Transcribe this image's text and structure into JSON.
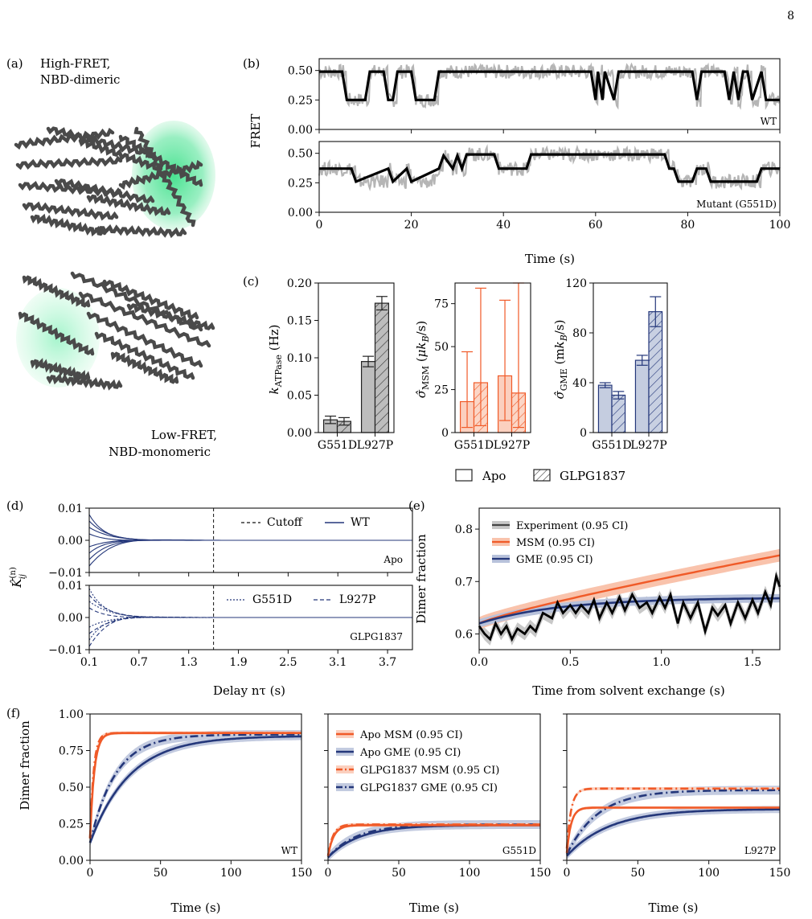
{
  "page_number": "8",
  "panel_labels": {
    "a": "(a)",
    "b": "(b)",
    "c": "(c)",
    "d": "(d)",
    "e": "(e)",
    "f": "(f)"
  },
  "panel_a": {
    "top_label_line1": "High-FRET,",
    "top_label_line2": "NBD-dimeric",
    "bottom_label_line1": "Low-FRET,",
    "bottom_label_line2": "NBD-monomeric",
    "highlight_color": "#3ee08a",
    "protein_color": "#4a4a4a"
  },
  "colors": {
    "msm": "#f05a28",
    "gme": "#24377a",
    "gray": "#b5b5b5",
    "gme_fill": "#c5cde0",
    "msm_fill": "#fbd0bf"
  },
  "chart_data": [
    {
      "id": "b",
      "type": "line",
      "ylabel": "FRET",
      "xlabel": "Time (s)",
      "xlim": [
        0,
        100
      ],
      "xticks": [
        "0",
        "20",
        "40",
        "60",
        "80",
        "100"
      ],
      "yticks": [
        "0.00",
        "0.25",
        "0.50"
      ],
      "subplots": [
        {
          "tag": "WT",
          "steps_x": [
            0,
            5,
            6,
            10,
            11,
            14,
            15,
            16,
            17,
            20,
            21,
            25,
            26,
            59,
            60,
            60.5,
            61.5,
            62,
            64,
            65,
            81,
            82,
            83,
            88,
            89,
            90,
            91,
            92,
            93,
            94,
            96,
            97,
            100
          ],
          "steps_y": [
            0.49,
            0.49,
            0.25,
            0.25,
            0.49,
            0.49,
            0.25,
            0.25,
            0.49,
            0.49,
            0.25,
            0.25,
            0.49,
            0.49,
            0.25,
            0.49,
            0.25,
            0.49,
            0.25,
            0.49,
            0.49,
            0.25,
            0.49,
            0.49,
            0.25,
            0.49,
            0.25,
            0.49,
            0.49,
            0.25,
            0.49,
            0.25,
            0.25
          ]
        },
        {
          "tag": "Mutant (G551D)",
          "steps_x": [
            0,
            7,
            8,
            15,
            16,
            19,
            20,
            26,
            27,
            29,
            30,
            31,
            32,
            38,
            39,
            45,
            46,
            75,
            76,
            77,
            78,
            81,
            82,
            84,
            85,
            95,
            96,
            99,
            100
          ],
          "steps_y": [
            0.37,
            0.37,
            0.26,
            0.37,
            0.26,
            0.37,
            0.26,
            0.37,
            0.48,
            0.37,
            0.48,
            0.37,
            0.49,
            0.49,
            0.37,
            0.37,
            0.49,
            0.49,
            0.37,
            0.37,
            0.26,
            0.26,
            0.37,
            0.37,
            0.26,
            0.26,
            0.37,
            0.37,
            0.37
          ]
        }
      ]
    },
    {
      "id": "c1",
      "type": "bar",
      "ylabel": "k_ATPase (Hz)",
      "categories": [
        "G551D",
        "L927P"
      ],
      "ylim": [
        0,
        0.2
      ],
      "yticks": [
        "0.00",
        "0.05",
        "0.10",
        "0.15",
        "0.20"
      ],
      "series": [
        {
          "name": "Apo",
          "values": [
            0.017,
            0.095
          ],
          "err": [
            0.005,
            0.007
          ]
        },
        {
          "name": "GLPG1837",
          "values": [
            0.015,
            0.173
          ],
          "err": [
            0.005,
            0.009
          ]
        }
      ]
    },
    {
      "id": "c2",
      "type": "bar",
      "ylabel": "σ̂_MSM (μk_B/s)",
      "categories": [
        "G551D",
        "L927P"
      ],
      "ylim": [
        0,
        87
      ],
      "yticks": [
        "0",
        "25",
        "50",
        "75"
      ],
      "series": [
        {
          "name": "Apo",
          "values": [
            18,
            33
          ],
          "err_low": [
            3,
            7
          ],
          "err_high": [
            47,
            77
          ]
        },
        {
          "name": "GLPG1837",
          "values": [
            29,
            23
          ],
          "err_low": [
            4,
            3
          ],
          "err_high": [
            84,
            87
          ]
        }
      ]
    },
    {
      "id": "c3",
      "type": "bar",
      "ylabel": "σ̂_GME (mk_B/s)",
      "categories": [
        "G551D",
        "L927P"
      ],
      "ylim": [
        0,
        120
      ],
      "yticks": [
        "0",
        "40",
        "80",
        "120"
      ],
      "series": [
        {
          "name": "Apo",
          "values": [
            38,
            58
          ],
          "err": [
            2,
            4
          ]
        },
        {
          "name": "GLPG1837",
          "values": [
            30,
            97
          ],
          "err": [
            3,
            12
          ]
        }
      ]
    },
    {
      "id": "d",
      "type": "line",
      "ylabel": "K̂_ij^(n)",
      "xlabel": "Delay nτ (s)",
      "xlim": [
        0.1,
        4.0
      ],
      "xticks": [
        "0.1",
        "0.7",
        "1.3",
        "1.9",
        "2.5",
        "3.1",
        "3.7"
      ],
      "yticks": [
        "0.01",
        "0.00",
        "−0.01"
      ],
      "cutoff": 1.6,
      "subplots": [
        {
          "tag": "Apo",
          "legend": [
            "Cutoff",
            "WT"
          ],
          "amplitudes": [
            0.008,
            0.006,
            0.004,
            -0.004,
            -0.006,
            -0.008,
            0.002,
            -0.002
          ]
        },
        {
          "tag": "GLPG1837",
          "legend": [
            "G551D",
            "L927P"
          ],
          "amplitudes": [
            0.009,
            0.007,
            0.005,
            0.003,
            -0.003,
            -0.005,
            -0.007,
            -0.009
          ]
        }
      ]
    },
    {
      "id": "e",
      "type": "line",
      "ylabel": "Dimer fraction",
      "xlabel": "Time from solvent exchange (s)",
      "xlim": [
        0,
        1.65
      ],
      "ylim": [
        0.57,
        0.84
      ],
      "xticks": [
        "0.0",
        "0.5",
        "1.0",
        "1.5"
      ],
      "yticks": [
        "0.6",
        "0.7",
        "0.8"
      ],
      "legend": [
        "Experiment (0.95 CI)",
        "MSM (0.95 CI)",
        "GME (0.95 CI)"
      ],
      "msm": {
        "start": 0.62,
        "end": 0.75
      },
      "gme": {
        "start": 0.62,
        "end": 0.668
      },
      "experiment": {
        "x": [
          0,
          0.03,
          0.06,
          0.09,
          0.12,
          0.15,
          0.18,
          0.21,
          0.25,
          0.28,
          0.31,
          0.35,
          0.4,
          0.43,
          0.46,
          0.5,
          0.53,
          0.56,
          0.6,
          0.63,
          0.66,
          0.7,
          0.73,
          0.77,
          0.8,
          0.84,
          0.88,
          0.92,
          0.95,
          0.99,
          1.02,
          1.05,
          1.09,
          1.12,
          1.16,
          1.2,
          1.24,
          1.28,
          1.31,
          1.35,
          1.38,
          1.42,
          1.46,
          1.5,
          1.53,
          1.57,
          1.6,
          1.63,
          1.65
        ],
        "y": [
          0.615,
          0.6,
          0.59,
          0.62,
          0.6,
          0.615,
          0.59,
          0.61,
          0.6,
          0.615,
          0.605,
          0.64,
          0.63,
          0.66,
          0.64,
          0.655,
          0.64,
          0.655,
          0.64,
          0.665,
          0.63,
          0.66,
          0.64,
          0.67,
          0.645,
          0.675,
          0.65,
          0.66,
          0.64,
          0.67,
          0.65,
          0.675,
          0.62,
          0.66,
          0.63,
          0.66,
          0.605,
          0.65,
          0.635,
          0.655,
          0.62,
          0.66,
          0.63,
          0.665,
          0.64,
          0.68,
          0.655,
          0.71,
          0.69
        ]
      }
    },
    {
      "id": "f",
      "type": "line",
      "ylabel": "Dimer fraction",
      "xlabel": "Time (s)",
      "xlim": [
        0,
        150
      ],
      "ylim": [
        0,
        1
      ],
      "xticks": [
        "0",
        "50",
        "100",
        "150"
      ],
      "yticks": [
        "0.00",
        "0.25",
        "0.50",
        "0.75",
        "1.00"
      ],
      "legend": [
        "Apo MSM (0.95 CI)",
        "Apo GME (0.95 CI)",
        "GLPG1837 MSM (0.95 CI)",
        "GLPG1837 GME (0.95 CI)"
      ],
      "subplots": [
        {
          "tag": "WT",
          "apo_msm": {
            "y0": 0.15,
            "yinf": 0.87,
            "tau": 3
          },
          "apo_gme": {
            "y0": 0.12,
            "yinf": 0.85,
            "tau": 28
          },
          "glpg_msm": {
            "y0": 0.15,
            "yinf": 0.87,
            "tau": 2.5
          },
          "glpg_gme": {
            "y0": 0.12,
            "yinf": 0.86,
            "tau": 18
          }
        },
        {
          "tag": "G551D",
          "apo_msm": {
            "y0": 0.03,
            "yinf": 0.24,
            "tau": 4
          },
          "apo_gme": {
            "y0": 0.02,
            "yinf": 0.24,
            "tau": 22
          },
          "glpg_msm": {
            "y0": 0.03,
            "yinf": 0.245,
            "tau": 3.5
          },
          "glpg_gme": {
            "y0": 0.02,
            "yinf": 0.245,
            "tau": 20
          }
        },
        {
          "tag": "L927P",
          "apo_msm": {
            "y0": 0.05,
            "yinf": 0.36,
            "tau": 3
          },
          "apo_gme": {
            "y0": 0.03,
            "yinf": 0.35,
            "tau": 30
          },
          "glpg_msm": {
            "y0": 0.08,
            "yinf": 0.49,
            "tau": 3
          },
          "glpg_gme": {
            "y0": 0.04,
            "yinf": 0.48,
            "tau": 22
          }
        }
      ]
    }
  ],
  "shared_legend": {
    "apo": "Apo",
    "glpg": "GLPG1837"
  }
}
